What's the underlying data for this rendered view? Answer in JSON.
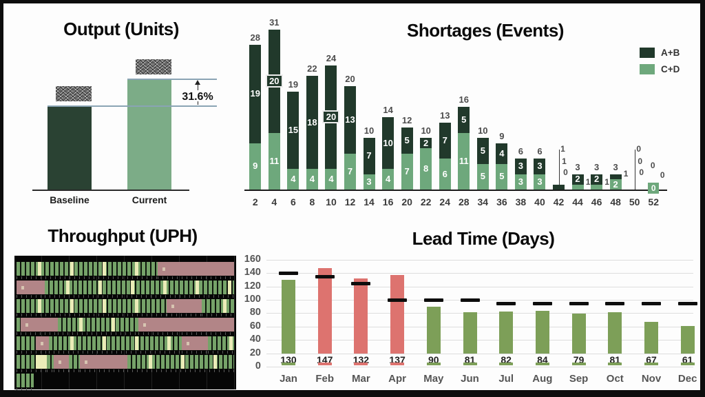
{
  "slide": {
    "background": "#fdfdfd",
    "frame_color": "#0d0d0d"
  },
  "chart_data": [
    {
      "id": "output",
      "type": "bar",
      "title": "Output (Units)",
      "categories": [
        "Baseline",
        "Current"
      ],
      "values_redacted": true,
      "relative_values": [
        1.0,
        1.316
      ],
      "delta_label": "31.6%",
      "bar_colors": [
        "#2a4233",
        "#7cac87"
      ],
      "reference_line_color": "#8aa4b4"
    },
    {
      "id": "shortages",
      "type": "stacked-bar",
      "title": "Shortages (Events)",
      "legend": [
        {
          "name": "A+B",
          "color": "#21392b"
        },
        {
          "name": "C+D",
          "color": "#6ea87c"
        }
      ],
      "ymax": 31,
      "x_labels": [
        2,
        4,
        6,
        8,
        10,
        12,
        14,
        16,
        20,
        22,
        24,
        28,
        34,
        36,
        38,
        40,
        42,
        44,
        46,
        48,
        50,
        52
      ],
      "bars": [
        {
          "x": 2,
          "cd": 9,
          "ab": 19,
          "total": 28
        },
        {
          "x": 4,
          "cd": 11,
          "ab": 20,
          "total": 31,
          "ab_label_boxed": true
        },
        {
          "x": 6,
          "cd": 4,
          "ab": 15,
          "total": 19
        },
        {
          "x": 8,
          "cd": 4,
          "ab": 18,
          "total": 22
        },
        {
          "x": 10,
          "cd": 4,
          "ab": 20,
          "total": 24,
          "ab_label_boxed": true
        },
        {
          "x": 12,
          "cd": 7,
          "ab": 13,
          "total": 20
        },
        {
          "x": 14,
          "cd": 3,
          "ab": 7,
          "total": 10
        },
        {
          "x": 16,
          "cd": 4,
          "ab": 10,
          "total": 14
        },
        {
          "x": 20,
          "cd": 7,
          "ab": 5,
          "total": 12
        },
        {
          "x": 22,
          "cd": 8,
          "ab": 2,
          "total": 10
        },
        {
          "x": 24,
          "cd": 6,
          "ab": 7,
          "total": 13
        },
        {
          "x": 28,
          "cd": 11,
          "ab": 5,
          "total": 16
        },
        {
          "x": 34,
          "cd": 5,
          "ab": 5,
          "total": 10
        },
        {
          "x": 36,
          "cd": 5,
          "ab": 4,
          "total": 9
        },
        {
          "x": 38,
          "cd": 3,
          "ab": 3,
          "total": 6
        },
        {
          "x": 40,
          "cd": 3,
          "ab": 3,
          "total": 6
        },
        {
          "x": 42,
          "cd": 0,
          "ab": 1,
          "total": 1,
          "callout": "stack"
        },
        {
          "x": 44,
          "cd": 1,
          "ab": 2,
          "total": 3,
          "callout": "side-cd"
        },
        {
          "x": 46,
          "cd": 1,
          "ab": 2,
          "total": 3,
          "callout": "side-cd"
        },
        {
          "x": 48,
          "cd": 2,
          "ab": 1,
          "total": 3,
          "callout": "side-ab"
        },
        {
          "x": 50,
          "cd": 0,
          "ab": 0,
          "total": 0,
          "callout": "stack"
        },
        {
          "x": 52,
          "cd": 0,
          "ab": 0,
          "total": 0,
          "callout": "chip"
        }
      ]
    },
    {
      "id": "throughput",
      "type": "timeline",
      "title": "Throughput (UPH)",
      "colors": {
        "run": "#76a369",
        "accent": "#ebecb8",
        "down": "#b28587",
        "background": "#060606"
      },
      "rows": [
        {
          "segments": [
            [
              "run",
              65
            ],
            [
              "down",
              35
            ]
          ]
        },
        {
          "segments": [
            [
              "down",
              13
            ],
            [
              "run",
              87
            ]
          ]
        },
        {
          "segments": [
            [
              "run",
              69
            ],
            [
              "down",
              16
            ],
            [
              "run",
              15
            ]
          ]
        },
        {
          "segments": [
            [
              "run",
              2
            ],
            [
              "down",
              17
            ],
            [
              "run",
              37
            ],
            [
              "down",
              44
            ]
          ]
        },
        {
          "segments": [
            [
              "run",
              9
            ],
            [
              "down",
              6
            ],
            [
              "run",
              61
            ],
            [
              "down",
              12
            ],
            [
              "run",
              12
            ]
          ]
        },
        {
          "segments": [
            [
              "run",
              9
            ],
            [
              "accent",
              5
            ],
            [
              "run",
              3
            ],
            [
              "down",
              7
            ],
            [
              "run",
              5
            ],
            [
              "down",
              22
            ],
            [
              "run",
              49
            ]
          ]
        },
        {
          "segments": [
            [
              "run",
              8
            ],
            [
              "idle",
              92
            ]
          ]
        }
      ]
    },
    {
      "id": "leadtime",
      "type": "bar",
      "title": "Lead Time (Days)",
      "categories": [
        "Jan",
        "Feb",
        "Mar",
        "Apr",
        "May",
        "Jun",
        "Jul",
        "Aug",
        "Sep",
        "Oct",
        "Nov",
        "Dec"
      ],
      "values": [
        130,
        147,
        132,
        137,
        90,
        81,
        82,
        84,
        79,
        81,
        67,
        61
      ],
      "targets": [
        140,
        135,
        125,
        100,
        100,
        100,
        95,
        95,
        95,
        95,
        95,
        95
      ],
      "statuses": [
        "ok",
        "alert",
        "alert",
        "alert",
        "ok",
        "ok",
        "ok",
        "ok",
        "ok",
        "ok",
        "ok",
        "ok"
      ],
      "colors": {
        "ok": "#7d9f58",
        "alert": "#dd736f",
        "target": "#0d0d0d"
      },
      "y_ticks": [
        160,
        140,
        120,
        100,
        80,
        60,
        40,
        20,
        0
      ],
      "ylim": [
        0,
        160
      ],
      "grid": true
    }
  ]
}
